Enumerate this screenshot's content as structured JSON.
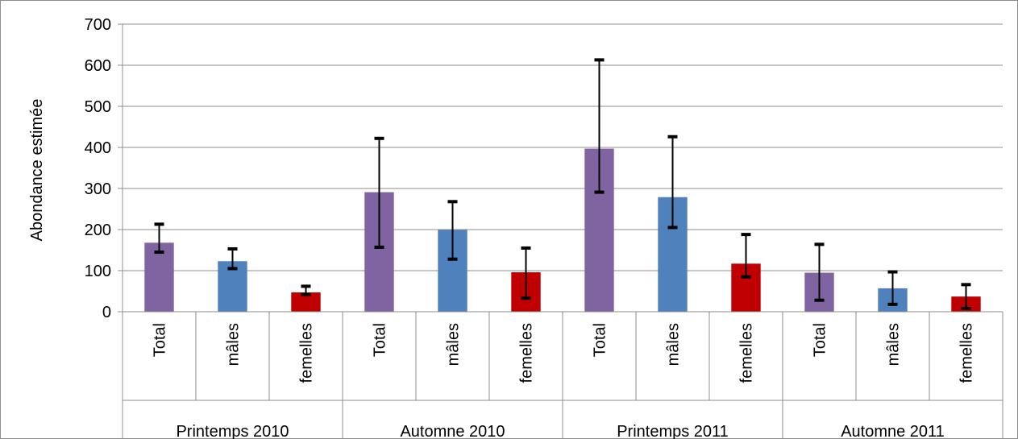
{
  "chart_data": {
    "type": "bar",
    "title": "",
    "xlabel": "",
    "ylabel": "Abondance estimée",
    "ylim": [
      0,
      700
    ],
    "yticks": [
      0,
      100,
      200,
      300,
      400,
      500,
      600,
      700
    ],
    "grid": true,
    "legend": "none",
    "groups": [
      "Printemps 2010",
      "Automne 2010",
      "Printemps 2011",
      "Automne 2011"
    ],
    "categories": [
      "Total",
      "mâles",
      "femelles"
    ],
    "colors": {
      "Total": "#8064a2",
      "mâles": "#4f81bd",
      "femelles": "#c00000"
    },
    "bars": [
      {
        "group": "Printemps 2010",
        "category": "Total",
        "value": 168,
        "err_low": 145,
        "err_high": 213
      },
      {
        "group": "Printemps 2010",
        "category": "mâles",
        "value": 123,
        "err_low": 105,
        "err_high": 153
      },
      {
        "group": "Printemps 2010",
        "category": "femelles",
        "value": 47,
        "err_low": 42,
        "err_high": 62
      },
      {
        "group": "Automne 2010",
        "category": "Total",
        "value": 291,
        "err_low": 157,
        "err_high": 422
      },
      {
        "group": "Automne 2010",
        "category": "mâles",
        "value": 199,
        "err_low": 128,
        "err_high": 268
      },
      {
        "group": "Automne 2010",
        "category": "femelles",
        "value": 96,
        "err_low": 33,
        "err_high": 155
      },
      {
        "group": "Printemps 2011",
        "category": "Total",
        "value": 397,
        "err_low": 291,
        "err_high": 613
      },
      {
        "group": "Printemps 2011",
        "category": "mâles",
        "value": 279,
        "err_low": 205,
        "err_high": 426
      },
      {
        "group": "Printemps 2011",
        "category": "femelles",
        "value": 117,
        "err_low": 85,
        "err_high": 188
      },
      {
        "group": "Automne 2011",
        "category": "Total",
        "value": 95,
        "err_low": 28,
        "err_high": 164
      },
      {
        "group": "Automne 2011",
        "category": "mâles",
        "value": 57,
        "err_low": 18,
        "err_high": 97
      },
      {
        "group": "Automne 2011",
        "category": "femelles",
        "value": 37,
        "err_low": 8,
        "err_high": 66
      }
    ]
  }
}
